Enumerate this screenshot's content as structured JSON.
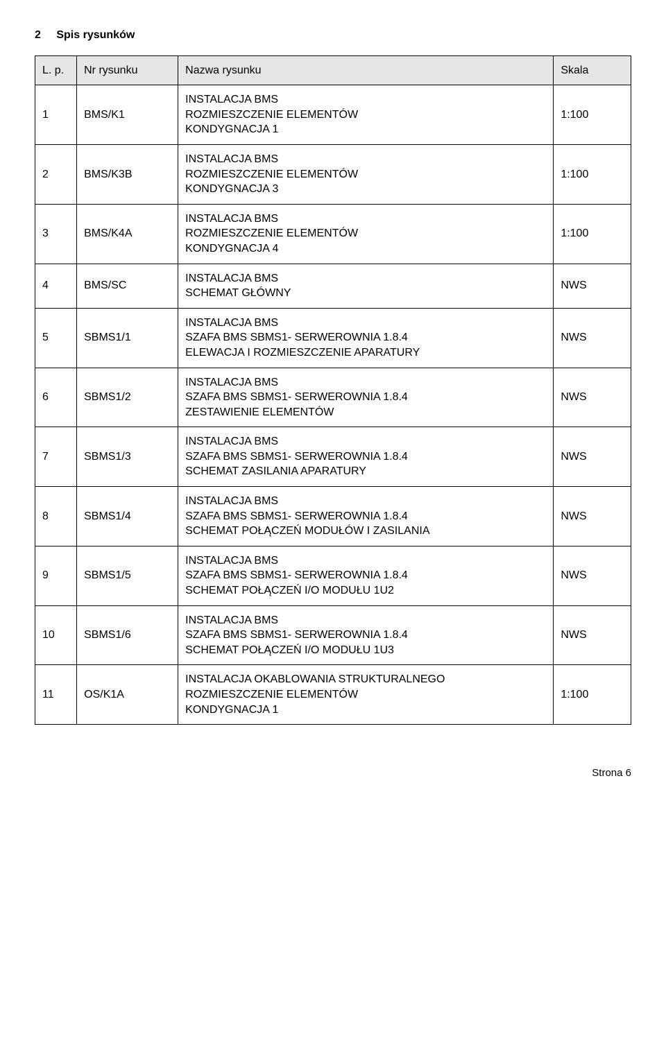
{
  "heading": {
    "number": "2",
    "title": "Spis rysunków"
  },
  "columns": {
    "lp": "L. p.",
    "nr": "Nr rysunku",
    "name": "Nazwa rysunku",
    "scale": "Skala"
  },
  "rows": [
    {
      "lp": "1",
      "nr": "BMS/K1",
      "lines": [
        "INSTALACJA BMS",
        "ROZMIESZCZENIE ELEMENTÓW",
        "KONDYGNACJA 1"
      ],
      "scale": "1:100"
    },
    {
      "lp": "2",
      "nr": "BMS/K3B",
      "lines": [
        "INSTALACJA BMS",
        "ROZMIESZCZENIE ELEMENTÓW",
        "KONDYGNACJA 3"
      ],
      "scale": "1:100"
    },
    {
      "lp": "3",
      "nr": "BMS/K4A",
      "lines": [
        "INSTALACJA BMS",
        "ROZMIESZCZENIE ELEMENTÓW",
        "KONDYGNACJA 4"
      ],
      "scale": "1:100"
    },
    {
      "lp": "4",
      "nr": "BMS/SC",
      "lines": [
        "INSTALACJA BMS",
        "SCHEMAT GŁÓWNY"
      ],
      "scale": "NWS"
    },
    {
      "lp": "5",
      "nr": "SBMS1/1",
      "lines": [
        "INSTALACJA BMS",
        "SZAFA BMS SBMS1- SERWEROWNIA 1.8.4",
        "ELEWACJA I ROZMIESZCZENIE APARATURY"
      ],
      "scale": "NWS"
    },
    {
      "lp": "6",
      "nr": "SBMS1/2",
      "lines": [
        "INSTALACJA BMS",
        "SZAFA BMS SBMS1- SERWEROWNIA 1.8.4",
        "ZESTAWIENIE ELEMENTÓW"
      ],
      "scale": "NWS"
    },
    {
      "lp": "7",
      "nr": "SBMS1/3",
      "lines": [
        "INSTALACJA BMS",
        "SZAFA BMS SBMS1- SERWEROWNIA 1.8.4",
        "SCHEMAT ZASILANIA APARATURY"
      ],
      "scale": "NWS"
    },
    {
      "lp": "8",
      "nr": "SBMS1/4",
      "lines": [
        "INSTALACJA BMS",
        "SZAFA BMS SBMS1- SERWEROWNIA 1.8.4",
        "SCHEMAT POŁĄCZEŃ MODUŁÓW I ZASILANIA"
      ],
      "scale": "NWS"
    },
    {
      "lp": "9",
      "nr": "SBMS1/5",
      "lines": [
        "INSTALACJA BMS",
        "SZAFA BMS SBMS1- SERWEROWNIA 1.8.4",
        "SCHEMAT POŁĄCZEŃ I/O MODUŁU 1U2"
      ],
      "scale": "NWS"
    },
    {
      "lp": "10",
      "nr": "SBMS1/6",
      "lines": [
        "INSTALACJA BMS",
        "SZAFA BMS SBMS1- SERWEROWNIA 1.8.4",
        "SCHEMAT POŁĄCZEŃ I/O MODUŁU 1U3"
      ],
      "scale": "NWS"
    },
    {
      "lp": "11",
      "nr": "OS/K1A",
      "lines": [
        "INSTALACJA OKABLOWANIA STRUKTURALNEGO",
        "ROZMIESZCZENIE ELEMENTÓW",
        "KONDYGNACJA 1"
      ],
      "scale": "1:100"
    }
  ],
  "footer": "Strona 6"
}
